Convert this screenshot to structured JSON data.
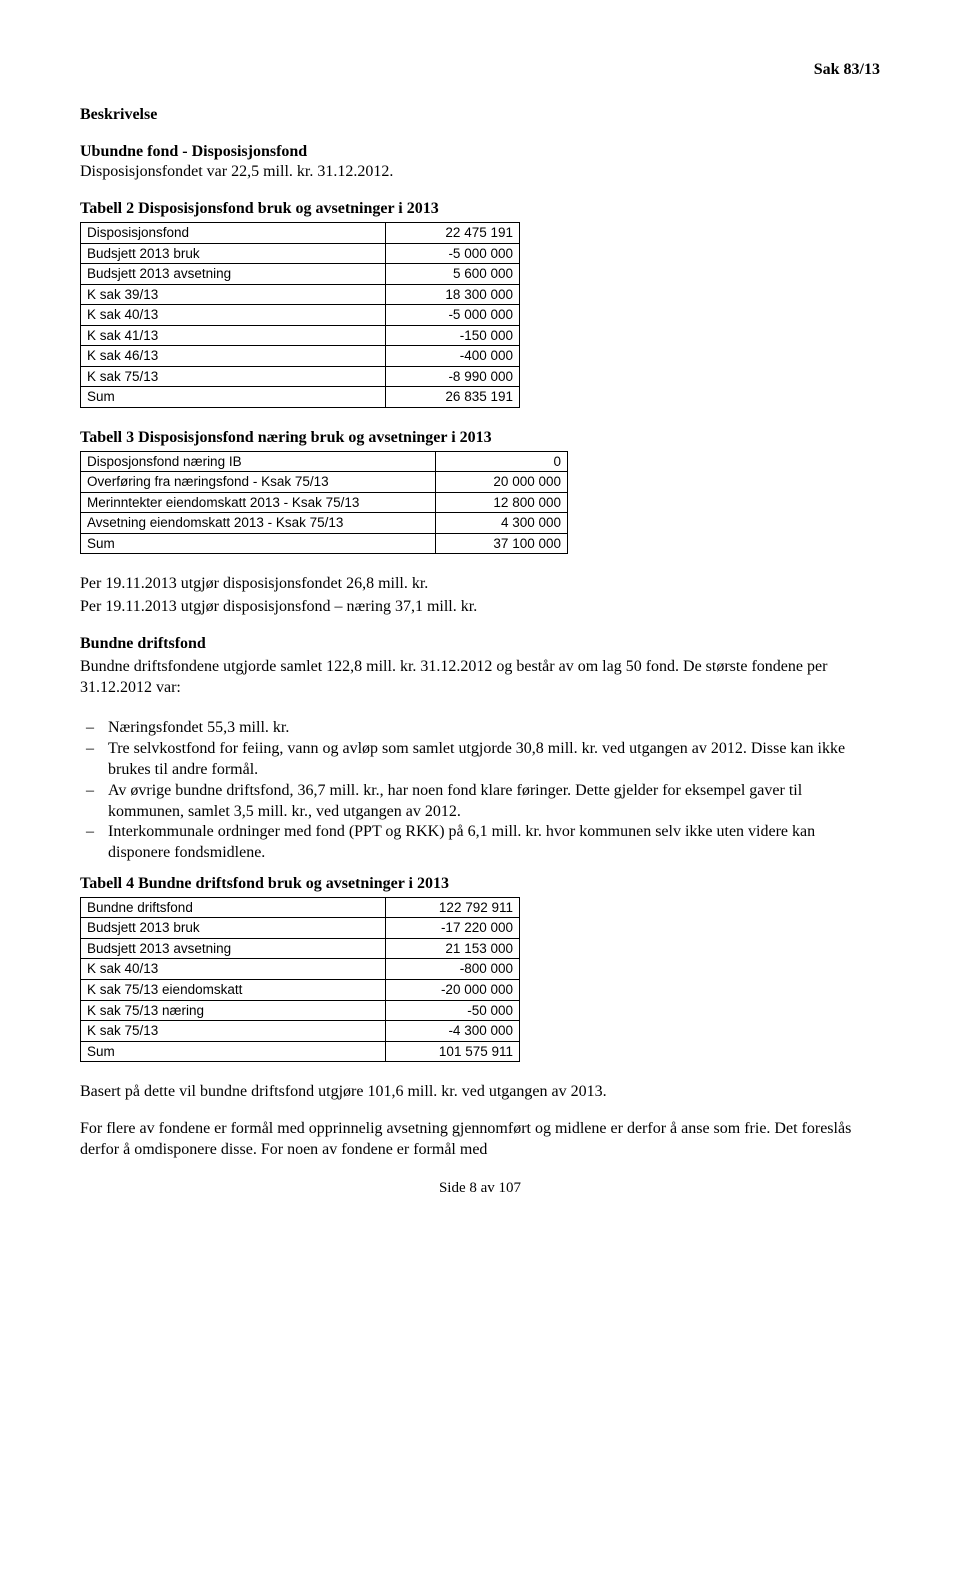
{
  "header": {
    "sak": "Sak 83/13"
  },
  "intro": {
    "beskrivelse_label": "Beskrivelse",
    "ubundne_label": "Ubundne fond - Disposisjonsfond",
    "ubundne_text": "Disposisjonsfondet var 22,5 mill. kr. 31.12.2012."
  },
  "table2": {
    "caption": "Tabell 2 Disposisjonsfond bruk og avsetninger i 2013",
    "rows": [
      {
        "label": "Disposisjonsfond",
        "value": "22 475 191"
      },
      {
        "label": "Budsjett 2013 bruk",
        "value": "-5 000 000"
      },
      {
        "label": "Budsjett 2013 avsetning",
        "value": "5 600 000"
      },
      {
        "label": "K sak 39/13",
        "value": "18 300 000"
      },
      {
        "label": "K sak 40/13",
        "value": "-5 000 000"
      },
      {
        "label": "K sak 41/13",
        "value": "-150 000"
      },
      {
        "label": "K sak 46/13",
        "value": "-400 000"
      },
      {
        "label": "K sak 75/13",
        "value": "-8 990 000"
      },
      {
        "label": "Sum",
        "value": "26 835 191"
      }
    ]
  },
  "table3": {
    "caption": "Tabell 3 Disposisjonsfond næring bruk og avsetninger i 2013",
    "rows": [
      {
        "label": "Disposjonsfond næring IB",
        "value": "0"
      },
      {
        "label": "Overføring fra næringsfond - Ksak 75/13",
        "value": "20 000 000"
      },
      {
        "label": "Merinntekter eiendomskatt 2013 - Ksak 75/13",
        "value": "12 800 000"
      },
      {
        "label": "Avsetning eiendomskatt 2013 - Ksak 75/13",
        "value": "4 300 000"
      },
      {
        "label": "Sum",
        "value": "37 100 000"
      }
    ]
  },
  "per_text": {
    "line1": "Per 19.11.2013 utgjør disposisjonsfondet 26,8 mill. kr.",
    "line2": "Per 19.11.2013 utgjør disposisjonsfond – næring 37,1 mill. kr."
  },
  "bundne": {
    "heading": "Bundne driftsfond",
    "para1": "Bundne driftsfondene utgjorde samlet 122,8 mill. kr. 31.12.2012 og består av om lag 50 fond. De største fondene per 31.12.2012 var:",
    "bullets": {
      "b1": "Næringsfondet 55,3 mill. kr.",
      "b2": "Tre selvkostfond for feiing, vann og avløp som samlet utgjorde 30,8 mill. kr. ved utgangen av 2012. Disse kan ikke brukes til andre formål.",
      "b3": "Av øvrige bundne driftsfond, 36,7 mill. kr., har noen fond klare føringer. Dette gjelder for eksempel gaver til kommunen, samlet 3,5 mill. kr., ved utgangen av 2012.",
      "b4": "Interkommunale ordninger med fond (PPT og RKK) på 6,1 mill. kr. hvor kommunen selv ikke uten videre kan disponere fondsmidlene."
    }
  },
  "table4": {
    "caption": "Tabell 4 Bundne driftsfond bruk og avsetninger i 2013",
    "rows": [
      {
        "label": "Bundne driftsfond",
        "value": "122 792 911"
      },
      {
        "label": "Budsjett 2013 bruk",
        "value": "-17 220 000"
      },
      {
        "label": "Budsjett 2013 avsetning",
        "value": "21 153 000"
      },
      {
        "label": "K sak 40/13",
        "value": "-800 000"
      },
      {
        "label": "K sak 75/13 eiendomskatt",
        "value": "-20 000 000"
      },
      {
        "label": "K sak 75/13 næring",
        "value": "-50 000"
      },
      {
        "label": "K sak 75/13",
        "value": "-4 300 000"
      },
      {
        "label": "Sum",
        "value": "101 575 911"
      }
    ]
  },
  "closing": {
    "para1": "Basert på dette vil bundne driftsfond utgjøre 101,6 mill. kr. ved utgangen av 2013.",
    "para2": "For flere av fondene er formål med opprinnelig avsetning gjennomført og midlene er derfor å anse som frie. Det foreslås derfor å omdisponere disse. For noen av fondene er formål med"
  },
  "footer": {
    "page": "Side 8 av 107"
  }
}
